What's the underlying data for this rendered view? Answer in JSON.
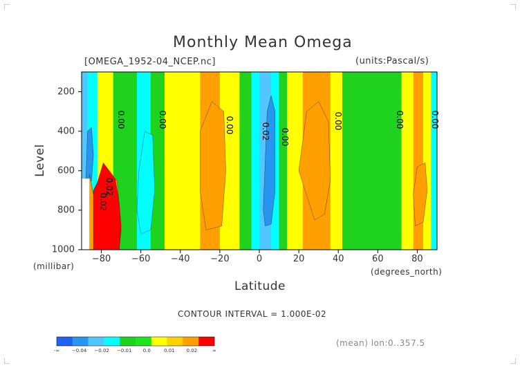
{
  "chart_data": {
    "type": "heatmap",
    "title": "Monthly Mean Omega",
    "file_label": "[OMEGA_1952-04_NCEP.nc]",
    "units_label": "(units:Pascal/s)",
    "xlabel": "Latitude",
    "x_units": "(degrees_north)",
    "ylabel": "Level",
    "y_units": "(millibar)",
    "x_ticks": [
      -80,
      -60,
      -40,
      -20,
      0,
      20,
      40,
      60,
      80
    ],
    "x_tick_labels": [
      "−80",
      "−60",
      "−40",
      "−20",
      "0",
      "20",
      "40",
      "60",
      "80"
    ],
    "xlim": [
      -90,
      90
    ],
    "y_ticks": [
      200,
      400,
      600,
      800,
      1000
    ],
    "ylim": [
      1000,
      100
    ],
    "contour_interval_text": "CONTOUR INTERVAL = 1.000E-02",
    "mean_text": "(mean) lon:0..357.5",
    "contour_labels": [
      "0.00",
      "0.00",
      "0.00",
      "0.02",
      "0.00",
      "0.00",
      "0.00",
      "0.00",
      "0.02",
      "0.02"
    ],
    "colorbar": {
      "colors": [
        "#1e64f0",
        "#2896f0",
        "#50c8ff",
        "#00ffff",
        "#1ed21e",
        "#1ee61e",
        "#ffff00",
        "#ffd200",
        "#ffa000",
        "#ff0000"
      ],
      "labels": [
        "-∞",
        "−0.04",
        "−0.02",
        "−0.01",
        "0.0",
        "0.01",
        "0.02",
        "∞"
      ]
    },
    "bands": [
      {
        "from": -90,
        "to": -87,
        "value": -0.025
      },
      {
        "from": -87,
        "to": -82,
        "value": -0.005
      },
      {
        "from": -82,
        "to": -74,
        "value": 0.005
      },
      {
        "from": -74,
        "to": -66,
        "value": 0.001
      },
      {
        "from": -66,
        "to": -62,
        "value": 0.0
      },
      {
        "from": -62,
        "to": -55,
        "value": -0.008
      },
      {
        "from": -55,
        "to": -48,
        "value": 0.0
      },
      {
        "from": -48,
        "to": -42,
        "value": 0.003
      },
      {
        "from": -42,
        "to": -30,
        "value": 0.007
      },
      {
        "from": -30,
        "to": -20,
        "value": 0.011
      },
      {
        "from": -20,
        "to": -10,
        "value": 0.004
      },
      {
        "from": -10,
        "to": -4,
        "value": 0.0
      },
      {
        "from": -4,
        "to": 0,
        "value": -0.005
      },
      {
        "from": 0,
        "to": 6,
        "value": -0.018
      },
      {
        "from": 6,
        "to": 10,
        "value": -0.004
      },
      {
        "from": 10,
        "to": 14,
        "value": 0.0
      },
      {
        "from": 14,
        "to": 22,
        "value": 0.004
      },
      {
        "from": 22,
        "to": 36,
        "value": 0.011
      },
      {
        "from": 36,
        "to": 42,
        "value": 0.004
      },
      {
        "from": 42,
        "to": 52,
        "value": 0.0
      },
      {
        "from": 52,
        "to": 64,
        "value": 0.0
      },
      {
        "from": 64,
        "to": 72,
        "value": 0.002
      },
      {
        "from": 72,
        "to": 78,
        "value": 0.004
      },
      {
        "from": 78,
        "to": 83,
        "value": 0.011
      },
      {
        "from": 83,
        "to": 87,
        "value": 0.004
      },
      {
        "from": 87,
        "to": 90,
        "value": -0.005
      }
    ]
  }
}
